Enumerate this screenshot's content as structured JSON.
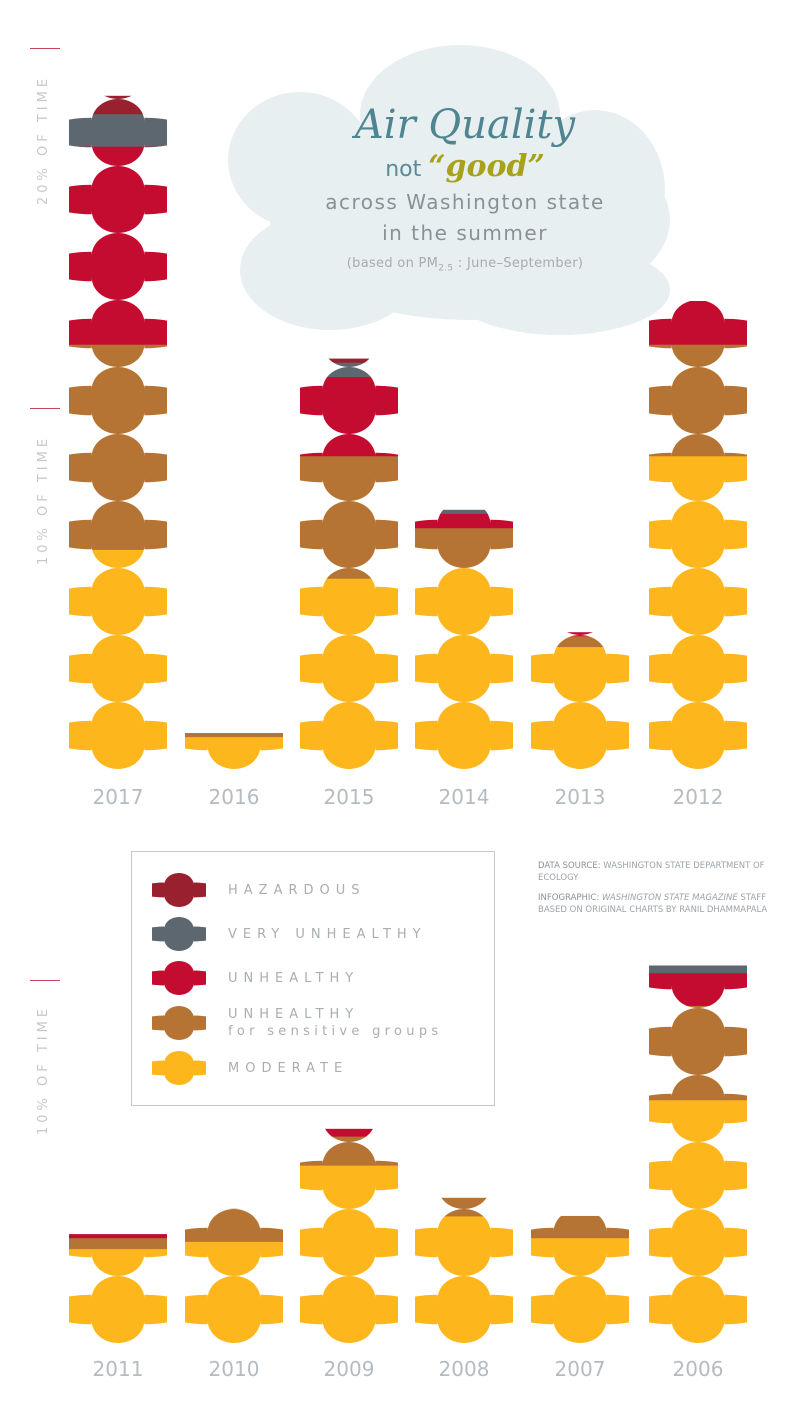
{
  "title": {
    "line1": "Air Quality",
    "line2_pre": "not ",
    "line2_good": "“good”",
    "line3": "across Washington state",
    "line4": "in the summer",
    "note_pre": "(based on PM",
    "note_sub": "2.5",
    "note_post": " : June–September)"
  },
  "axis": {
    "top_20": "20% OF TIME",
    "top_10": "10% OF TIME",
    "bottom_10": "10% OF TIME"
  },
  "legend": {
    "items": [
      {
        "key": "hazardous",
        "label": "HAZARDOUS",
        "sub": ""
      },
      {
        "key": "very_unhealthy",
        "label": "VERY UNHEALTHY",
        "sub": ""
      },
      {
        "key": "unhealthy",
        "label": "UNHEALTHY",
        "sub": ""
      },
      {
        "key": "usg",
        "label": "UNHEALTHY",
        "sub": "for sensitive groups"
      },
      {
        "key": "moderate",
        "label": "MODERATE",
        "sub": ""
      }
    ]
  },
  "source": {
    "ds_label": "DATA SOURCE:",
    "ds_text": " WASHINGTON STATE DEPARTMENT OF ECOLOGY",
    "ig_label": "INFOGRAPHIC:",
    "ig_italic": " WASHINGTON STATE MAGAZINE",
    "ig_text": " STAFF BASED ON ORIGINAL CHARTS BY RANIL DHAMMAPALA"
  },
  "colors": {
    "hazardous": "#98202f",
    "very_unhealthy": "#5c6770",
    "unhealthy": "#c40c31",
    "usg": "#b57434",
    "moderate": "#fdb71c",
    "title_cloud": "#e7eff1",
    "tick": "#c9455a"
  },
  "chart_data": {
    "type": "bar",
    "title": "Air Quality not “good” across Washington state in the summer",
    "subtitle": "(based on PM2.5 : June–September)",
    "xlabel": "",
    "ylabel": "% of time",
    "stacked": true,
    "legend_position": "bottom-left box",
    "categories": [
      "2017",
      "2016",
      "2015",
      "2014",
      "2013",
      "2012",
      "2011",
      "2010",
      "2009",
      "2008",
      "2007",
      "2006"
    ],
    "series": [
      {
        "name": "Moderate",
        "values": [
          6.1,
          0.9,
          5.3,
          5.6,
          3.4,
          8.7,
          2.6,
          2.8,
          4.9,
          3.5,
          2.9,
          6.7
        ]
      },
      {
        "name": "Unhealthy for sensitive groups",
        "values": [
          5.7,
          0.1,
          3.4,
          1.1,
          0.3,
          3.1,
          0.3,
          0.9,
          0.8,
          0.5,
          0.6,
          2.6
        ]
      },
      {
        "name": "Unhealthy",
        "values": [
          5.5,
          0.0,
          2.2,
          0.4,
          0.1,
          1.2,
          0.1,
          0.0,
          0.2,
          0.0,
          0.0,
          0.9
        ]
      },
      {
        "name": "Very unhealthy",
        "values": [
          0.9,
          0.0,
          0.4,
          0.1,
          0.0,
          0.0,
          0.0,
          0.0,
          0.0,
          0.0,
          0.0,
          0.2
        ]
      },
      {
        "name": "Hazardous",
        "values": [
          0.5,
          0.0,
          0.1,
          0.0,
          0.0,
          0.0,
          0.0,
          0.0,
          0.0,
          0.0,
          0.0,
          0.0
        ]
      }
    ],
    "panels": [
      {
        "years": [
          "2017",
          "2016",
          "2015",
          "2014",
          "2013",
          "2012"
        ],
        "ticks": [
          "10% OF TIME",
          "20% OF TIME"
        ]
      },
      {
        "years": [
          "2011",
          "2010",
          "2009",
          "2008",
          "2007",
          "2006"
        ],
        "ticks": [
          "10% OF TIME"
        ]
      }
    ],
    "ylim": [
      0,
      20
    ]
  }
}
